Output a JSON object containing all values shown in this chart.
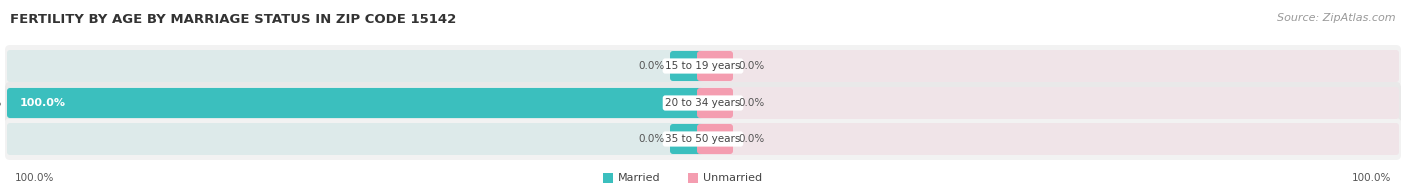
{
  "title": "FERTILITY BY AGE BY MARRIAGE STATUS IN ZIP CODE 15142",
  "source": "Source: ZipAtlas.com",
  "rows": [
    {
      "label": "15 to 19 years",
      "married": 0.0,
      "unmarried": 0.0
    },
    {
      "label": "20 to 34 years",
      "married": 100.0,
      "unmarried": 0.0
    },
    {
      "label": "35 to 50 years",
      "married": 0.0,
      "unmarried": 0.0
    }
  ],
  "married_color": "#3bbfbe",
  "unmarried_color": "#f49db0",
  "bar_bg_color_left": "#dde8e8",
  "bar_bg_color_right": "#f0e0e5",
  "row_bg_odd": "#f2f2f2",
  "row_bg_even": "#e9e9e9",
  "title_color": "#333333",
  "source_color": "#999999",
  "value_color": "#555555",
  "bottom_left": "100.0%",
  "bottom_right": "100.0%",
  "figsize": [
    14.06,
    1.96
  ],
  "dpi": 100
}
